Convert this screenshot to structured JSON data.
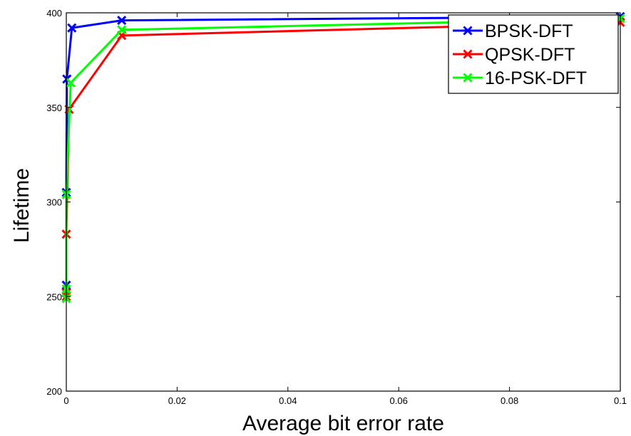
{
  "chart_data": {
    "type": "line",
    "title": "",
    "xlabel": "Average bit error rate",
    "ylabel": "Lifetime",
    "xlim": [
      0,
      0.1
    ],
    "ylim": [
      200,
      400
    ],
    "xticks": [
      0,
      0.02,
      0.04,
      0.06,
      0.08,
      0.1
    ],
    "xtick_labels": [
      "0",
      "0.02",
      "0.04",
      "0.06",
      "0.08",
      "0.1"
    ],
    "yticks": [
      200,
      250,
      300,
      350,
      400
    ],
    "ytick_labels": [
      "200",
      "250",
      "300",
      "350",
      "400"
    ],
    "grid": false,
    "legend_position": "top-right",
    "series": [
      {
        "name": "BPSK-DFT",
        "color": "#0000ff",
        "marker": "x",
        "points": [
          [
            0,
            252
          ],
          [
            0,
            256
          ],
          [
            0,
            305
          ],
          [
            0.0001,
            365
          ],
          [
            0.001,
            392
          ],
          [
            0.01,
            396
          ],
          [
            0.1,
            398
          ]
        ]
      },
      {
        "name": "QPSK-DFT",
        "color": "#ff0000",
        "marker": "x",
        "points": [
          [
            0,
            250
          ],
          [
            0,
            252
          ],
          [
            0,
            283
          ],
          [
            0.0005,
            349
          ],
          [
            0.01,
            388
          ],
          [
            0.1,
            395
          ]
        ]
      },
      {
        "name": "16-PSK-DFT",
        "color": "#00ff00",
        "marker": "x",
        "points": [
          [
            0,
            249
          ],
          [
            0,
            254
          ],
          [
            0,
            304
          ],
          [
            0.0008,
            363
          ],
          [
            0.01,
            391
          ],
          [
            0.1,
            397
          ]
        ]
      }
    ]
  }
}
